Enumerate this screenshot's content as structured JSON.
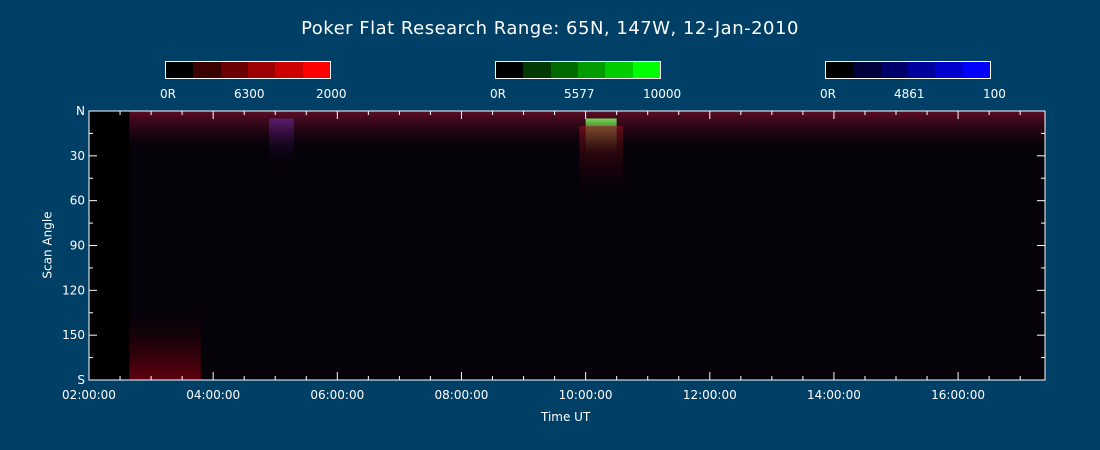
{
  "title": "Poker Flat Research Range: 65N, 147W, 12-Jan-2010",
  "colorbars": [
    {
      "name": "6300",
      "min_label": "0R",
      "mid_label": "6300",
      "max_label": "2000",
      "colors": [
        "#000000",
        "#3a0000",
        "#6a0000",
        "#9c0000",
        "#cc0000",
        "#ff0000"
      ]
    },
    {
      "name": "5577",
      "min_label": "0R",
      "mid_label": "5577",
      "max_label": "10000",
      "colors": [
        "#000000",
        "#003a00",
        "#006a00",
        "#009c00",
        "#00cc00",
        "#00ff00"
      ]
    },
    {
      "name": "4861",
      "min_label": "0R",
      "mid_label": "4861",
      "max_label": "100",
      "colors": [
        "#000000",
        "#00003a",
        "#00006a",
        "#00009c",
        "#0000cc",
        "#0000ff"
      ]
    }
  ],
  "chart_data": {
    "type": "heatmap",
    "xlabel": "Time UT",
    "ylabel": "Scan Angle",
    "x_ticks": [
      "02:00:00",
      "04:00:00",
      "06:00:00",
      "08:00:00",
      "10:00:00",
      "12:00:00",
      "14:00:00",
      "16:00:00"
    ],
    "x_range_hours": [
      2.0,
      17.4
    ],
    "data_start_hour": 2.65,
    "y_ticks": [
      "N",
      "30",
      "60",
      "90",
      "120",
      "150",
      "S"
    ],
    "y_range": [
      0,
      180
    ],
    "features": [
      {
        "label": "red band near N horizon",
        "time_range": [
          2.65,
          17.4
        ],
        "angle_range": [
          0,
          25
        ],
        "channel": "6300"
      },
      {
        "label": "green burst",
        "time_range": [
          10.0,
          10.5
        ],
        "angle_range": [
          5,
          30
        ],
        "channel": "5577"
      },
      {
        "label": "red patch",
        "time_range": [
          9.9,
          10.6
        ],
        "angle_range": [
          10,
          55
        ],
        "channel": "6300"
      },
      {
        "label": "purple patch",
        "time_range": [
          4.9,
          5.3
        ],
        "angle_range": [
          5,
          35
        ],
        "channel": "6300+4861"
      },
      {
        "label": "red patch near S horizon",
        "time_range": [
          2.65,
          3.8
        ],
        "angle_range": [
          135,
          180
        ],
        "channel": "6300"
      }
    ]
  }
}
